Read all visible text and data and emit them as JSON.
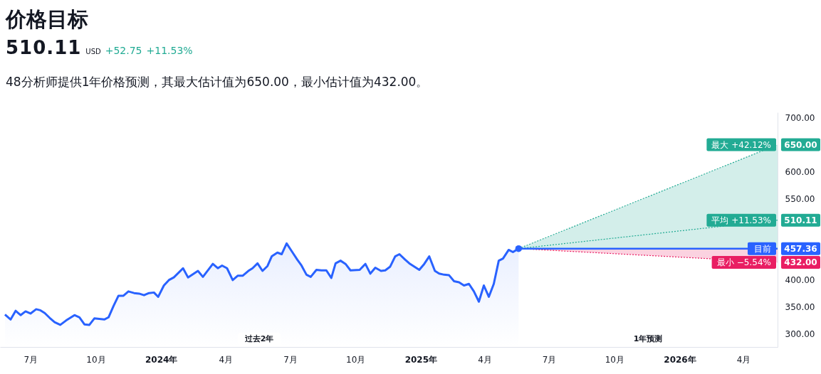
{
  "chart_data": {
    "type": "area",
    "title": "价格目标",
    "subtitle": "510.11",
    "annotations": [
      "USD",
      "+52.75",
      "+11.53%",
      "48分析师提供1年价格预测，其最大估计值为650.00，最小估计值为432.00。",
      "过去2年",
      "1年预测"
    ],
    "x": [
      "2023-05-26",
      "2023-06-03",
      "2023-06-10",
      "2023-06-17",
      "2023-06-24",
      "2023-07-01",
      "2023-07-09",
      "2023-07-15",
      "2023-07-21",
      "2023-07-28",
      "2023-08-04",
      "2023-08-12",
      "2023-08-20",
      "2023-09-01",
      "2023-09-08",
      "2023-09-15",
      "2023-09-22",
      "2023-09-29",
      "2023-10-13",
      "2023-10-19",
      "2023-10-26",
      "2023-11-02",
      "2023-11-09",
      "2023-11-16",
      "2023-11-24",
      "2023-12-01",
      "2023-12-08",
      "2023-12-15",
      "2023-12-22",
      "2023-12-28",
      "2024-01-05",
      "2024-01-12",
      "2024-01-19",
      "2024-02-01",
      "2024-02-08",
      "2024-02-22",
      "2024-02-29",
      "2024-03-14",
      "2024-03-21",
      "2024-03-27",
      "2024-04-03",
      "2024-04-11",
      "2024-04-18",
      "2024-04-25",
      "2024-05-03",
      "2024-05-09",
      "2024-05-16",
      "2024-05-23",
      "2024-05-30",
      "2024-06-05",
      "2024-06-13",
      "2024-06-19",
      "2024-06-26",
      "2024-07-04",
      "2024-07-11",
      "2024-07-17",
      "2024-07-24",
      "2024-07-30",
      "2024-08-07",
      "2024-08-14",
      "2024-08-21",
      "2024-08-28",
      "2024-09-03",
      "2024-09-10",
      "2024-09-17",
      "2024-09-24",
      "2024-10-07",
      "2024-10-15",
      "2024-10-22",
      "2024-10-29",
      "2024-11-06",
      "2024-11-12",
      "2024-11-19",
      "2024-11-26",
      "2024-12-02",
      "2024-12-10",
      "2024-12-16",
      "2024-12-30",
      "2025-01-06",
      "2025-01-13",
      "2025-01-21",
      "2025-01-27",
      "2025-02-03",
      "2025-02-10",
      "2025-02-17",
      "2025-02-24",
      "2025-03-03",
      "2025-03-10",
      "2025-03-17",
      "2025-03-24",
      "2025-03-31",
      "2025-04-07",
      "2025-04-14",
      "2025-04-21",
      "2025-04-27",
      "2025-05-05",
      "2025-05-11",
      "2025-05-19"
    ],
    "series": [
      {
        "type": "area",
        "name": "最大 +42.12%",
        "color": "#22ab94",
        "line_style": "dotted",
        "x": [
          "2025-05-19",
          "2026-05-19"
        ],
        "values": [
          457.36,
          650
        ],
        "value_labels": [
          null,
          "650.00"
        ]
      },
      {
        "type": "area",
        "name": "最小 −5.54%",
        "color": "#e91e63",
        "line_style": "dotted",
        "x": [
          "2025-05-19",
          "2026-05-19"
        ],
        "values": [
          457.36,
          432
        ],
        "value_labels": [
          null,
          "432.00"
        ]
      },
      {
        "type": "line",
        "name": "平均 +11.53%",
        "color": "#22ab94",
        "line_style": "dotted",
        "x": [
          "2025-05-19",
          "2026-05-19"
        ],
        "values": [
          457.36,
          510.11
        ],
        "value_labels": [
          null,
          "510.11"
        ]
      },
      {
        "type": "line",
        "name": "目前",
        "color": "#2962ff",
        "x": [
          "2025-05-19",
          "2026-05-19"
        ],
        "values": [
          457.36,
          457.36
        ],
        "value_labels": [
          null,
          "457.36"
        ]
      },
      {
        "color": "#2962ff",
        "values": [
          335,
          326,
          342,
          334,
          341,
          337,
          345,
          343,
          338,
          329,
          321,
          316,
          324,
          334,
          330,
          317,
          316,
          328,
          326,
          330,
          351,
          370,
          370,
          378,
          375,
          374,
          371,
          375,
          376,
          368,
          389,
          399,
          404,
          421,
          404,
          416,
          405,
          429,
          421,
          426,
          421,
          399,
          407,
          407,
          416,
          421,
          430,
          416,
          425,
          443,
          450,
          447,
          467,
          451,
          437,
          426,
          409,
          405,
          418,
          417,
          417,
          403,
          430,
          435,
          429,
          417,
          418,
          429,
          411,
          422,
          416,
          417,
          424,
          443,
          447,
          437,
          430,
          418,
          429,
          443,
          416,
          411,
          409,
          408,
          397,
          395,
          389,
          392,
          378,
          359,
          389,
          368,
          392,
          435,
          439,
          455,
          451,
          457.36
        ]
      },
      {
        "type": "scatter",
        "color": "#2962ff",
        "marker": "circle",
        "x": [
          "2025-05-19"
        ],
        "values": [
          457.36
        ]
      }
    ],
    "xlim": [
      "2023-05-19",
      "2026-05-19"
    ],
    "xticks": [
      {
        "value": "2023-07-01",
        "label": "7月"
      },
      {
        "value": "2023-10-01",
        "label": "10月"
      },
      {
        "value": "2024-01-01",
        "label": "2024年"
      },
      {
        "value": "2024-04-01",
        "label": "4月"
      },
      {
        "value": "2024-07-01",
        "label": "7月"
      },
      {
        "value": "2024-10-01",
        "label": "10月"
      },
      {
        "value": "2025-01-01",
        "label": "2025年"
      },
      {
        "value": "2025-04-01",
        "label": "4月"
      },
      {
        "value": "2025-07-01",
        "label": "7月"
      },
      {
        "value": "2025-10-01",
        "label": "10月"
      },
      {
        "value": "2026-01-01",
        "label": "2026年"
      },
      {
        "value": "2026-04-01",
        "label": "4月"
      }
    ],
    "ylim": [
      275,
      710
    ],
    "yticks": [
      {
        "value": 300,
        "label": "300.00"
      },
      {
        "value": 350,
        "label": "350.00"
      },
      {
        "value": 400,
        "label": "400.00"
      },
      {
        "value": 550,
        "label": "550.00"
      },
      {
        "value": 600,
        "label": "600.00"
      },
      {
        "value": 700,
        "label": "700.00"
      }
    ],
    "grid": false,
    "legend": "right"
  }
}
